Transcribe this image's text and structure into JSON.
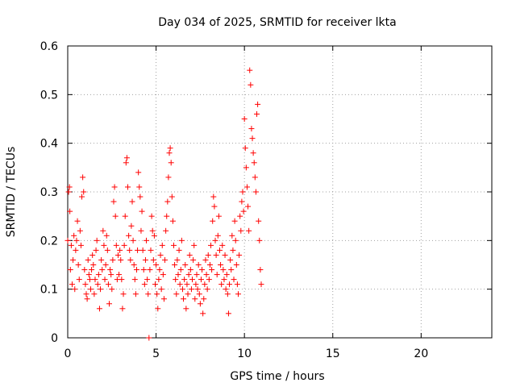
{
  "chart_data": {
    "type": "scatter",
    "title": "Day 034 of 2025, SRMTID for receiver lkta",
    "xlabel": "GPS time / hours",
    "ylabel": "SRMTID / TECUs",
    "xlim": [
      0,
      24
    ],
    "ylim": [
      0,
      0.6
    ],
    "xticks": [
      0,
      5,
      10,
      15,
      20
    ],
    "yticks": [
      0,
      0.1,
      0.2,
      0.3,
      0.4,
      0.5,
      0.6
    ],
    "xtick_labels": [
      "0",
      "5",
      "10",
      "15",
      "20"
    ],
    "ytick_labels": [
      "0",
      "0.1",
      "0.2",
      "0.3",
      "0.4",
      "0.5",
      "0.6"
    ],
    "grid": true,
    "marker": "plus",
    "color": "#ff0000",
    "x_range_covered": [
      0,
      11
    ],
    "series": [
      {
        "name": "SRMTID",
        "points": [
          [
            0.0,
            0.2
          ],
          [
            0.05,
            0.3
          ],
          [
            0.1,
            0.31
          ],
          [
            0.12,
            0.26
          ],
          [
            0.15,
            0.14
          ],
          [
            0.2,
            0.19
          ],
          [
            0.25,
            0.11
          ],
          [
            0.3,
            0.16
          ],
          [
            0.35,
            0.21
          ],
          [
            0.4,
            0.1
          ],
          [
            0.45,
            0.18
          ],
          [
            0.5,
            0.2
          ],
          [
            0.55,
            0.24
          ],
          [
            0.6,
            0.15
          ],
          [
            0.65,
            0.12
          ],
          [
            0.7,
            0.22
          ],
          [
            0.75,
            0.19
          ],
          [
            0.8,
            0.29
          ],
          [
            0.85,
            0.33
          ],
          [
            0.9,
            0.3
          ],
          [
            0.95,
            0.14
          ],
          [
            1.0,
            0.11
          ],
          [
            1.05,
            0.09
          ],
          [
            1.1,
            0.08
          ],
          [
            1.15,
            0.16
          ],
          [
            1.2,
            0.13
          ],
          [
            1.25,
            0.12
          ],
          [
            1.3,
            0.1
          ],
          [
            1.35,
            0.14
          ],
          [
            1.4,
            0.17
          ],
          [
            1.45,
            0.15
          ],
          [
            1.5,
            0.09
          ],
          [
            1.55,
            0.12
          ],
          [
            1.6,
            0.18
          ],
          [
            1.65,
            0.2
          ],
          [
            1.7,
            0.11
          ],
          [
            1.75,
            0.13
          ],
          [
            1.8,
            0.06
          ],
          [
            1.85,
            0.1
          ],
          [
            1.9,
            0.16
          ],
          [
            1.95,
            0.14
          ],
          [
            2.0,
            0.22
          ],
          [
            2.05,
            0.19
          ],
          [
            2.1,
            0.12
          ],
          [
            2.15,
            0.15
          ],
          [
            2.2,
            0.21
          ],
          [
            2.25,
            0.18
          ],
          [
            2.3,
            0.11
          ],
          [
            2.35,
            0.07
          ],
          [
            2.4,
            0.14
          ],
          [
            2.45,
            0.13
          ],
          [
            2.5,
            0.1
          ],
          [
            2.55,
            0.16
          ],
          [
            2.6,
            0.28
          ],
          [
            2.65,
            0.31
          ],
          [
            2.7,
            0.25
          ],
          [
            2.75,
            0.19
          ],
          [
            2.8,
            0.12
          ],
          [
            2.85,
            0.17
          ],
          [
            2.9,
            0.13
          ],
          [
            2.95,
            0.18
          ],
          [
            3.0,
            0.16
          ],
          [
            3.05,
            0.12
          ],
          [
            3.1,
            0.06
          ],
          [
            3.15,
            0.09
          ],
          [
            3.2,
            0.19
          ],
          [
            3.25,
            0.25
          ],
          [
            3.3,
            0.36
          ],
          [
            3.35,
            0.37
          ],
          [
            3.4,
            0.31
          ],
          [
            3.45,
            0.21
          ],
          [
            3.5,
            0.18
          ],
          [
            3.55,
            0.16
          ],
          [
            3.6,
            0.23
          ],
          [
            3.65,
            0.28
          ],
          [
            3.7,
            0.2
          ],
          [
            3.75,
            0.15
          ],
          [
            3.8,
            0.12
          ],
          [
            3.85,
            0.09
          ],
          [
            3.9,
            0.14
          ],
          [
            3.95,
            0.18
          ],
          [
            4.0,
            0.34
          ],
          [
            4.05,
            0.31
          ],
          [
            4.1,
            0.29
          ],
          [
            4.15,
            0.22
          ],
          [
            4.2,
            0.26
          ],
          [
            4.25,
            0.18
          ],
          [
            4.3,
            0.14
          ],
          [
            4.35,
            0.11
          ],
          [
            4.4,
            0.16
          ],
          [
            4.45,
            0.2
          ],
          [
            4.5,
            0.12
          ],
          [
            4.55,
            0.09
          ],
          [
            4.6,
            0.0
          ],
          [
            4.65,
            0.14
          ],
          [
            4.7,
            0.18
          ],
          [
            4.75,
            0.25
          ],
          [
            4.8,
            0.22
          ],
          [
            4.85,
            0.16
          ],
          [
            4.9,
            0.21
          ],
          [
            4.95,
            0.11
          ],
          [
            5.0,
            0.15
          ],
          [
            5.05,
            0.09
          ],
          [
            5.1,
            0.06
          ],
          [
            5.15,
            0.12
          ],
          [
            5.2,
            0.14
          ],
          [
            5.25,
            0.17
          ],
          [
            5.3,
            0.1
          ],
          [
            5.35,
            0.19
          ],
          [
            5.4,
            0.13
          ],
          [
            5.45,
            0.08
          ],
          [
            5.5,
            0.16
          ],
          [
            5.55,
            0.22
          ],
          [
            5.6,
            0.25
          ],
          [
            5.65,
            0.28
          ],
          [
            5.7,
            0.33
          ],
          [
            5.75,
            0.38
          ],
          [
            5.8,
            0.39
          ],
          [
            5.85,
            0.36
          ],
          [
            5.9,
            0.29
          ],
          [
            5.95,
            0.24
          ],
          [
            6.0,
            0.19
          ],
          [
            6.05,
            0.15
          ],
          [
            6.1,
            0.12
          ],
          [
            6.15,
            0.09
          ],
          [
            6.2,
            0.16
          ],
          [
            6.25,
            0.13
          ],
          [
            6.3,
            0.18
          ],
          [
            6.35,
            0.11
          ],
          [
            6.4,
            0.14
          ],
          [
            6.45,
            0.2
          ],
          [
            6.5,
            0.1
          ],
          [
            6.55,
            0.08
          ],
          [
            6.6,
            0.12
          ],
          [
            6.65,
            0.15
          ],
          [
            6.7,
            0.06
          ],
          [
            6.75,
            0.11
          ],
          [
            6.8,
            0.09
          ],
          [
            6.85,
            0.13
          ],
          [
            6.9,
            0.17
          ],
          [
            6.95,
            0.14
          ],
          [
            7.0,
            0.1
          ],
          [
            7.05,
            0.12
          ],
          [
            7.1,
            0.16
          ],
          [
            7.15,
            0.19
          ],
          [
            7.2,
            0.08
          ],
          [
            7.25,
            0.11
          ],
          [
            7.3,
            0.13
          ],
          [
            7.35,
            0.1
          ],
          [
            7.4,
            0.15
          ],
          [
            7.45,
            0.09
          ],
          [
            7.5,
            0.07
          ],
          [
            7.55,
            0.12
          ],
          [
            7.6,
            0.14
          ],
          [
            7.65,
            0.05
          ],
          [
            7.7,
            0.08
          ],
          [
            7.75,
            0.11
          ],
          [
            7.8,
            0.16
          ],
          [
            7.85,
            0.13
          ],
          [
            7.9,
            0.1
          ],
          [
            7.95,
            0.17
          ],
          [
            8.0,
            0.12
          ],
          [
            8.05,
            0.15
          ],
          [
            8.1,
            0.19
          ],
          [
            8.15,
            0.14
          ],
          [
            8.2,
            0.24
          ],
          [
            8.25,
            0.29
          ],
          [
            8.3,
            0.27
          ],
          [
            8.35,
            0.2
          ],
          [
            8.4,
            0.17
          ],
          [
            8.45,
            0.13
          ],
          [
            8.5,
            0.21
          ],
          [
            8.55,
            0.25
          ],
          [
            8.6,
            0.18
          ],
          [
            8.65,
            0.15
          ],
          [
            8.7,
            0.11
          ],
          [
            8.75,
            0.19
          ],
          [
            8.8,
            0.14
          ],
          [
            8.85,
            0.12
          ],
          [
            8.9,
            0.17
          ],
          [
            8.95,
            0.1
          ],
          [
            9.0,
            0.13
          ],
          [
            9.05,
            0.09
          ],
          [
            9.1,
            0.05
          ],
          [
            9.15,
            0.11
          ],
          [
            9.2,
            0.16
          ],
          [
            9.25,
            0.14
          ],
          [
            9.3,
            0.21
          ],
          [
            9.35,
            0.18
          ],
          [
            9.4,
            0.12
          ],
          [
            9.45,
            0.24
          ],
          [
            9.5,
            0.2
          ],
          [
            9.55,
            0.15
          ],
          [
            9.6,
            0.11
          ],
          [
            9.65,
            0.09
          ],
          [
            9.7,
            0.17
          ],
          [
            9.75,
            0.25
          ],
          [
            9.8,
            0.22
          ],
          [
            9.85,
            0.28
          ],
          [
            9.9,
            0.3
          ],
          [
            9.95,
            0.26
          ],
          [
            10.0,
            0.45
          ],
          [
            10.05,
            0.39
          ],
          [
            10.1,
            0.35
          ],
          [
            10.15,
            0.31
          ],
          [
            10.2,
            0.27
          ],
          [
            10.25,
            0.22
          ],
          [
            10.3,
            0.55
          ],
          [
            10.35,
            0.52
          ],
          [
            10.4,
            0.43
          ],
          [
            10.45,
            0.41
          ],
          [
            10.5,
            0.38
          ],
          [
            10.55,
            0.36
          ],
          [
            10.6,
            0.33
          ],
          [
            10.65,
            0.3
          ],
          [
            10.7,
            0.46
          ],
          [
            10.75,
            0.48
          ],
          [
            10.8,
            0.24
          ],
          [
            10.85,
            0.2
          ],
          [
            10.9,
            0.14
          ],
          [
            10.95,
            0.11
          ]
        ]
      }
    ]
  }
}
